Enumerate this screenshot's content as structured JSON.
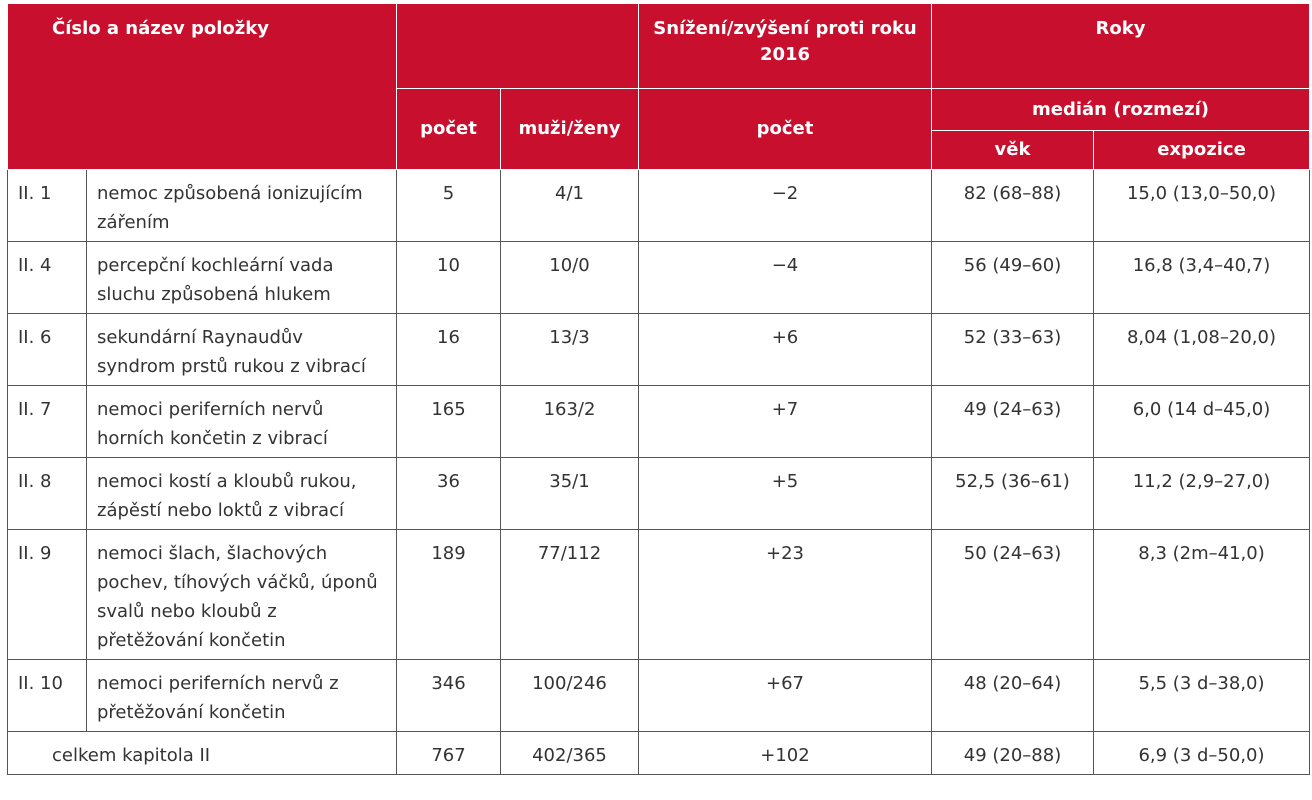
{
  "header": {
    "title": "Číslo a název položky",
    "change_title": "Snížení/zvýšení proti roku 2016",
    "roky": "Roky",
    "pocet": "počet",
    "muzi_zeny": "muži/ženy",
    "change_pocet": "počet",
    "median": "medián (rozmezí)",
    "vek": "věk",
    "expozice": "expozice"
  },
  "rows": [
    {
      "code": "II. 1",
      "name": "nemoc způsobená ionizujícím zářením",
      "count": "5",
      "mf": "4/1",
      "change": "−2",
      "age": "82 (68–88)",
      "exposure": "15,0 (13,0–50,0)"
    },
    {
      "code": "II. 4",
      "name": "percepční kochleární vada sluchu způsobená hlukem",
      "count": "10",
      "mf": "10/0",
      "change": "−4",
      "age": "56 (49–60)",
      "exposure": "16,8 (3,4–40,7)"
    },
    {
      "code": "II. 6",
      "name": "sekundární Raynaudův syndrom prstů rukou z vibrací",
      "count": "16",
      "mf": "13/3",
      "change": "+6",
      "age": "52 (33–63)",
      "exposure": "8,04 (1,08–20,0)"
    },
    {
      "code": "II. 7",
      "name": "nemoci periferních nervů horních končetin z vibrací",
      "count": "165",
      "mf": "163/2",
      "change": "+7",
      "age": "49 (24–63)",
      "exposure": "6,0 (14 d–45,0)"
    },
    {
      "code": "II. 8",
      "name": "nemoci kostí a kloubů rukou, zápěstí nebo loktů z vibrací",
      "count": "36",
      "mf": "35/1",
      "change": "+5",
      "age": "52,5 (36–61)",
      "exposure": "11,2 (2,9–27,0)"
    },
    {
      "code": "II. 9",
      "name": "nemoci šlach, šlachových pochev, tíhových váčků, úponů svalů nebo kloubů z přetěžování končetin",
      "count": "189",
      "mf": "77/112",
      "change": "+23",
      "age": "50 (24–63)",
      "exposure": "8,3 (2m–41,0)"
    },
    {
      "code": "II. 10",
      "name": "nemoci periferních nervů z přetěžování končetin",
      "count": "346",
      "mf": "100/246",
      "change": "+67",
      "age": "48 (20–64)",
      "exposure": "5,5 (3 d–38,0)"
    }
  ],
  "total": {
    "label": "celkem kapitola II",
    "count": "767",
    "mf": "402/365",
    "change": "+102",
    "age": "49 (20–88)",
    "exposure": "6,9 (3 d–50,0)"
  },
  "colors": {
    "header_bg": "#c8102e",
    "header_text": "#ffffff",
    "body_text": "#333333",
    "border": "#555555"
  }
}
